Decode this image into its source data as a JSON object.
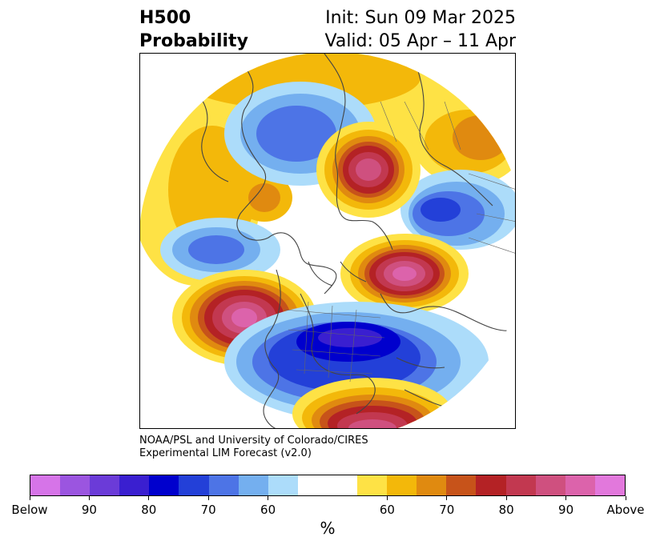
{
  "header": {
    "title_line1": "H500",
    "title_line2": "Probability",
    "init_text": "Init: Sun 09 Mar 2025",
    "valid_text": "Valid: 05 Apr – 11 Apr"
  },
  "credit": {
    "line1": "NOAA/PSL and University of Colorado/CIRES",
    "line2": "Experimental LIM Forecast (v2.0)"
  },
  "colorbar": {
    "colors": [
      "#d674e8",
      "#9b55e0",
      "#6b3bd8",
      "#3a1fd0",
      "#0000cd",
      "#2340d8",
      "#4d74e6",
      "#74afef",
      "#acdcfa",
      "#ffffff",
      "#ffffff",
      "#fee245",
      "#f3b80a",
      "#e08a10",
      "#c7531a",
      "#b42225",
      "#c23850",
      "#cf507f",
      "#dc63ab",
      "#e278dc"
    ],
    "labels": [
      "Below",
      "90",
      "80",
      "70",
      "60",
      "60",
      "70",
      "80",
      "90",
      "Above"
    ],
    "unit": "%"
  }
}
